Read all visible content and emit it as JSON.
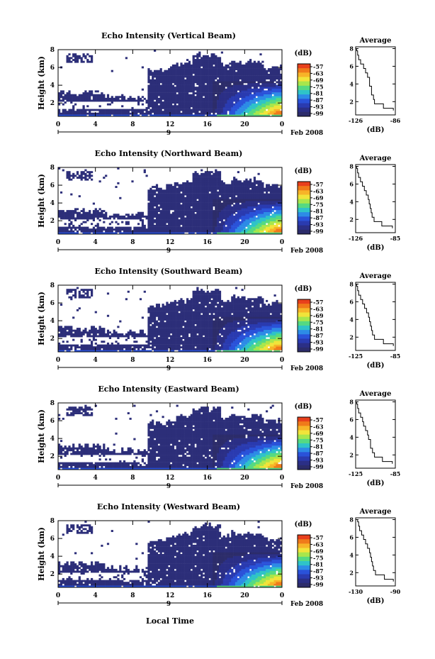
{
  "figure": {
    "xlabel_bottom": "Local Time",
    "date_label": "Feb 2008",
    "day_label": "9",
    "colorbar_unit": "(dB)",
    "colorbar_ticks": [
      "-57",
      "-63",
      "-69",
      "-75",
      "-81",
      "-87",
      "-93",
      "-99"
    ],
    "colorbar_colors": [
      "#e8401c",
      "#f07a1a",
      "#f7b428",
      "#f1e43a",
      "#a8e64c",
      "#55d982",
      "#2fc3c8",
      "#2d8be6",
      "#2a52d9",
      "#2a3bb0",
      "#2b2f86",
      "#2c2c6a"
    ],
    "cloud_color": "#2c2e79",
    "average_title": "Average",
    "average_xlabel": "(dB)",
    "main_ylabel": "Height (km)"
  },
  "chart_data": [
    {
      "type": "heatmap",
      "title": "Echo Intensity (Vertical Beam)",
      "xlabel": "",
      "ylabel": "Height (km)",
      "x_ticks": [
        "0",
        "4",
        "8",
        "12",
        "16",
        "20",
        "0"
      ],
      "y_ticks": [
        "2",
        "4",
        "6",
        "8"
      ],
      "xlim": [
        0,
        24
      ],
      "ylim": [
        0.5,
        8
      ],
      "avg_profile": {
        "title": "Average",
        "xlabel": "(dB)",
        "x_ticks": [
          "-126",
          "-86"
        ],
        "y_ticks": [
          "2",
          "4",
          "6",
          "8"
        ],
        "xlim": [
          -126,
          -86
        ],
        "height_km": [
          1,
          1.5,
          2,
          2.5,
          3,
          3.5,
          4,
          4.5,
          5,
          5.5,
          6,
          6.5,
          7,
          7.5,
          8
        ],
        "db": [
          -88,
          -98,
          -107,
          -108,
          -110,
          -110,
          -112,
          -112,
          -114,
          -116,
          -118,
          -121,
          -123,
          -124,
          -125
        ]
      }
    },
    {
      "type": "heatmap",
      "title": "Echo Intensity (Northward Beam)",
      "xlabel": "",
      "ylabel": "Height (km)",
      "x_ticks": [
        "0",
        "4",
        "8",
        "12",
        "16",
        "20",
        "0"
      ],
      "y_ticks": [
        "2",
        "4",
        "6",
        "8"
      ],
      "xlim": [
        0,
        24
      ],
      "ylim": [
        0.5,
        8
      ],
      "avg_profile": {
        "title": "Average",
        "xlabel": "(dB)",
        "x_ticks": [
          "-126",
          "-85"
        ],
        "y_ticks": [
          "2",
          "4",
          "6",
          "8"
        ],
        "xlim": [
          -126,
          -85
        ],
        "height_km": [
          1,
          1.5,
          2,
          2.5,
          3,
          3.5,
          4,
          4.5,
          5,
          5.5,
          6,
          6.5,
          7,
          7.5,
          8
        ],
        "db": [
          -88,
          -99,
          -107,
          -109,
          -110,
          -111,
          -112,
          -113,
          -115,
          -117,
          -119,
          -121,
          -123,
          -124,
          -125
        ]
      }
    },
    {
      "type": "heatmap",
      "title": "Echo Intensity (Southward Beam)",
      "xlabel": "",
      "ylabel": "Height (km)",
      "x_ticks": [
        "0",
        "4",
        "8",
        "12",
        "16",
        "20",
        "0"
      ],
      "y_ticks": [
        "2",
        "4",
        "6",
        "8"
      ],
      "xlim": [
        0,
        24
      ],
      "ylim": [
        0.5,
        8
      ],
      "avg_profile": {
        "title": "Average",
        "xlabel": "(dB)",
        "x_ticks": [
          "-125",
          "-85"
        ],
        "y_ticks": [
          "2",
          "4",
          "6",
          "8"
        ],
        "xlim": [
          -125,
          -85
        ],
        "height_km": [
          1,
          1.5,
          2,
          2.5,
          3,
          3.5,
          4,
          4.5,
          5,
          5.5,
          6,
          6.5,
          7,
          7.5,
          8
        ],
        "db": [
          -87,
          -97,
          -106,
          -108,
          -109,
          -110,
          -111,
          -112,
          -114,
          -116,
          -118,
          -120,
          -122,
          -123,
          -124
        ]
      }
    },
    {
      "type": "heatmap",
      "title": "Echo Intensity (Eastward Beam)",
      "xlabel": "",
      "ylabel": "Height (km)",
      "x_ticks": [
        "0",
        "4",
        "8",
        "12",
        "16",
        "20",
        "0"
      ],
      "y_ticks": [
        "2",
        "4",
        "6",
        "8"
      ],
      "xlim": [
        0,
        24
      ],
      "ylim": [
        0.5,
        8
      ],
      "avg_profile": {
        "title": "Average",
        "xlabel": "(dB)",
        "x_ticks": [
          "-125",
          "-85"
        ],
        "y_ticks": [
          "2",
          "4",
          "6",
          "8"
        ],
        "xlim": [
          -125,
          -85
        ],
        "height_km": [
          1,
          1.5,
          2,
          2.5,
          3,
          3.5,
          4,
          4.5,
          5,
          5.5,
          6,
          6.5,
          7,
          7.5,
          8
        ],
        "db": [
          -88,
          -98,
          -106,
          -108,
          -110,
          -110,
          -112,
          -113,
          -115,
          -117,
          -118,
          -120,
          -122,
          -123,
          -124
        ]
      }
    },
    {
      "type": "heatmap",
      "title": "Echo Intensity (Westward Beam)",
      "xlabel": "Local Time",
      "ylabel": "Height (km)",
      "x_ticks": [
        "0",
        "4",
        "8",
        "12",
        "16",
        "20",
        "0"
      ],
      "y_ticks": [
        "2",
        "4",
        "6",
        "8"
      ],
      "xlim": [
        0,
        24
      ],
      "ylim": [
        0.5,
        8
      ],
      "avg_profile": {
        "title": "Average",
        "xlabel": "(dB)",
        "x_ticks": [
          "-130",
          "-90"
        ],
        "y_ticks": [
          "2",
          "4",
          "6",
          "8"
        ],
        "xlim": [
          -130,
          -90
        ],
        "height_km": [
          1,
          1.5,
          2,
          2.5,
          3,
          3.5,
          4,
          4.5,
          5,
          5.5,
          6,
          6.5,
          7,
          7.5,
          8
        ],
        "db": [
          -92,
          -101,
          -110,
          -112,
          -113,
          -114,
          -115,
          -116,
          -118,
          -120,
          -122,
          -124,
          -126,
          -127,
          -128
        ]
      }
    }
  ]
}
